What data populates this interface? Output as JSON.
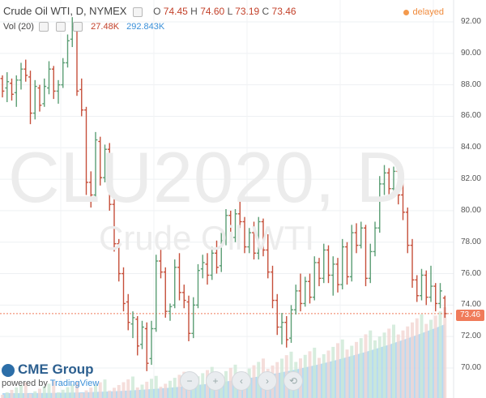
{
  "legend": {
    "title": "Crude Oil WTI, D, NYMEX",
    "open_label": "O",
    "open": "74.45",
    "high_label": "H",
    "high": "74.60",
    "low_label": "L",
    "low": "73.19",
    "close_label": "C",
    "close": "73.46"
  },
  "volume": {
    "label": "Vol (20)",
    "value": "27.48K",
    "ma": "292.843K"
  },
  "status": {
    "delayed": "delayed"
  },
  "watermark": {
    "symbol": "CLU2020, D",
    "name": "Crude Oil WTI"
  },
  "branding": {
    "logo": "CME Group",
    "powered_by": "powered by",
    "provider": "TradingView"
  },
  "price_axis": {
    "labels": [
      "92.00",
      "90.00",
      "88.00",
      "86.00",
      "84.00",
      "82.00",
      "80.00",
      "78.00",
      "76.00",
      "74.00",
      "72.00",
      "70.00"
    ],
    "current": "73.46"
  },
  "nav_buttons": [
    {
      "icon": "zoom-out-icon",
      "glyph": "−"
    },
    {
      "icon": "zoom-in-icon",
      "glyph": "+"
    },
    {
      "icon": "scroll-left-icon",
      "glyph": "‹"
    },
    {
      "icon": "scroll-right-icon",
      "glyph": "›"
    },
    {
      "icon": "reset-icon",
      "glyph": "⟲"
    }
  ],
  "colors": {
    "up": "#5b9e74",
    "down": "#c64f3a",
    "volume_up": "#cde8d6",
    "volume_down": "#f3d6d2",
    "ma_area": "#a8d4f2",
    "current_price": "#f07b5a"
  },
  "chart_data": {
    "type": "ohlc",
    "title": "Crude Oil WTI, D, NYMEX",
    "ylim": [
      69.5,
      92.5
    ],
    "series": [
      {
        "o": 88.4,
        "h": 88.6,
        "l": 87.2,
        "c": 87.6
      },
      {
        "o": 87.8,
        "h": 88.8,
        "l": 86.9,
        "c": 88.2
      },
      {
        "o": 88.1,
        "h": 88.4,
        "l": 87.0,
        "c": 87.4
      },
      {
        "o": 87.5,
        "h": 88.6,
        "l": 86.6,
        "c": 88.3
      },
      {
        "o": 88.3,
        "h": 89.4,
        "l": 87.7,
        "c": 89.0
      },
      {
        "o": 89.0,
        "h": 89.6,
        "l": 88.2,
        "c": 88.6
      },
      {
        "o": 88.5,
        "h": 88.9,
        "l": 85.5,
        "c": 86.2
      },
      {
        "o": 86.2,
        "h": 88.3,
        "l": 85.8,
        "c": 87.9
      },
      {
        "o": 87.8,
        "h": 88.0,
        "l": 86.3,
        "c": 86.7
      },
      {
        "o": 86.8,
        "h": 88.4,
        "l": 86.6,
        "c": 87.9
      },
      {
        "o": 87.8,
        "h": 89.5,
        "l": 87.4,
        "c": 89.0
      },
      {
        "o": 89.0,
        "h": 89.2,
        "l": 87.1,
        "c": 87.6
      },
      {
        "o": 87.6,
        "h": 88.3,
        "l": 86.8,
        "c": 88.0
      },
      {
        "o": 88.0,
        "h": 89.7,
        "l": 87.8,
        "c": 89.4
      },
      {
        "o": 89.4,
        "h": 91.2,
        "l": 89.1,
        "c": 90.8
      },
      {
        "o": 90.9,
        "h": 92.3,
        "l": 90.4,
        "c": 91.7
      },
      {
        "o": 91.7,
        "h": 91.9,
        "l": 87.3,
        "c": 87.6
      },
      {
        "o": 87.7,
        "h": 88.4,
        "l": 86.0,
        "c": 86.4
      },
      {
        "o": 86.4,
        "h": 86.6,
        "l": 81.0,
        "c": 81.8
      },
      {
        "o": 81.8,
        "h": 82.5,
        "l": 80.2,
        "c": 81.0
      },
      {
        "o": 81.0,
        "h": 85.0,
        "l": 80.6,
        "c": 84.5
      },
      {
        "o": 84.4,
        "h": 84.7,
        "l": 81.6,
        "c": 82.1
      },
      {
        "o": 82.1,
        "h": 84.2,
        "l": 81.8,
        "c": 83.9
      },
      {
        "o": 83.9,
        "h": 84.3,
        "l": 80.0,
        "c": 80.4
      },
      {
        "o": 80.4,
        "h": 80.8,
        "l": 77.4,
        "c": 77.9
      },
      {
        "o": 77.9,
        "h": 78.2,
        "l": 75.5,
        "c": 76.0
      },
      {
        "o": 76.0,
        "h": 76.4,
        "l": 73.6,
        "c": 74.1
      },
      {
        "o": 74.2,
        "h": 74.7,
        "l": 72.4,
        "c": 72.9
      },
      {
        "o": 72.8,
        "h": 73.6,
        "l": 71.9,
        "c": 73.2
      },
      {
        "o": 73.1,
        "h": 73.3,
        "l": 70.8,
        "c": 71.4
      },
      {
        "o": 71.5,
        "h": 73.0,
        "l": 71.2,
        "c": 72.6
      },
      {
        "o": 72.5,
        "h": 72.9,
        "l": 69.8,
        "c": 70.3
      },
      {
        "o": 70.6,
        "h": 73.0,
        "l": 70.2,
        "c": 72.5
      },
      {
        "o": 72.5,
        "h": 77.2,
        "l": 72.3,
        "c": 76.8
      },
      {
        "o": 76.8,
        "h": 77.6,
        "l": 75.7,
        "c": 76.1
      },
      {
        "o": 76.1,
        "h": 76.4,
        "l": 73.2,
        "c": 73.6
      },
      {
        "o": 73.6,
        "h": 74.1,
        "l": 73.0,
        "c": 73.9
      },
      {
        "o": 74.0,
        "h": 76.9,
        "l": 73.8,
        "c": 76.4
      },
      {
        "o": 76.4,
        "h": 77.3,
        "l": 74.3,
        "c": 74.8
      },
      {
        "o": 74.8,
        "h": 75.3,
        "l": 73.8,
        "c": 74.3
      },
      {
        "o": 74.2,
        "h": 74.6,
        "l": 71.7,
        "c": 72.2
      },
      {
        "o": 72.2,
        "h": 74.5,
        "l": 71.9,
        "c": 74.0
      },
      {
        "o": 74.0,
        "h": 76.6,
        "l": 73.8,
        "c": 76.2
      },
      {
        "o": 76.3,
        "h": 77.2,
        "l": 75.7,
        "c": 76.7
      },
      {
        "o": 76.6,
        "h": 77.3,
        "l": 75.3,
        "c": 75.9
      },
      {
        "o": 75.9,
        "h": 77.7,
        "l": 75.6,
        "c": 77.3
      },
      {
        "o": 77.3,
        "h": 78.1,
        "l": 76.0,
        "c": 76.4
      },
      {
        "o": 76.5,
        "h": 78.6,
        "l": 76.1,
        "c": 78.1
      },
      {
        "o": 78.1,
        "h": 80.1,
        "l": 77.8,
        "c": 79.7
      },
      {
        "o": 79.7,
        "h": 80.0,
        "l": 77.9,
        "c": 78.3
      },
      {
        "o": 78.3,
        "h": 80.1,
        "l": 78.0,
        "c": 79.8
      },
      {
        "o": 79.8,
        "h": 80.7,
        "l": 78.9,
        "c": 79.3
      },
      {
        "o": 79.3,
        "h": 79.6,
        "l": 77.3,
        "c": 77.7
      },
      {
        "o": 77.7,
        "h": 78.9,
        "l": 77.3,
        "c": 78.6
      },
      {
        "o": 78.6,
        "h": 79.3,
        "l": 76.9,
        "c": 77.3
      },
      {
        "o": 77.3,
        "h": 79.6,
        "l": 76.9,
        "c": 79.3
      },
      {
        "o": 79.3,
        "h": 79.5,
        "l": 77.1,
        "c": 77.5
      },
      {
        "o": 77.5,
        "h": 78.5,
        "l": 75.7,
        "c": 76.1
      },
      {
        "o": 76.1,
        "h": 76.5,
        "l": 73.8,
        "c": 74.3
      },
      {
        "o": 74.3,
        "h": 74.7,
        "l": 72.1,
        "c": 72.6
      },
      {
        "o": 72.6,
        "h": 73.5,
        "l": 71.5,
        "c": 72.9
      },
      {
        "o": 72.9,
        "h": 73.3,
        "l": 71.3,
        "c": 71.8
      },
      {
        "o": 71.9,
        "h": 74.0,
        "l": 71.6,
        "c": 73.7
      },
      {
        "o": 73.7,
        "h": 75.3,
        "l": 73.4,
        "c": 74.9
      },
      {
        "o": 74.9,
        "h": 76.0,
        "l": 73.6,
        "c": 74.1
      },
      {
        "o": 74.1,
        "h": 75.8,
        "l": 73.9,
        "c": 75.5
      },
      {
        "o": 75.5,
        "h": 76.0,
        "l": 74.1,
        "c": 74.5
      },
      {
        "o": 74.5,
        "h": 77.1,
        "l": 74.3,
        "c": 76.7
      },
      {
        "o": 76.7,
        "h": 77.0,
        "l": 75.2,
        "c": 75.7
      },
      {
        "o": 75.7,
        "h": 77.9,
        "l": 75.4,
        "c": 77.5
      },
      {
        "o": 77.5,
        "h": 77.8,
        "l": 75.4,
        "c": 75.9
      },
      {
        "o": 75.9,
        "h": 77.1,
        "l": 74.6,
        "c": 76.6
      },
      {
        "o": 76.6,
        "h": 77.0,
        "l": 74.8,
        "c": 75.3
      },
      {
        "o": 75.3,
        "h": 78.2,
        "l": 75.0,
        "c": 77.7
      },
      {
        "o": 77.7,
        "h": 78.0,
        "l": 75.3,
        "c": 75.8
      },
      {
        "o": 75.8,
        "h": 79.1,
        "l": 75.5,
        "c": 78.6
      },
      {
        "o": 78.6,
        "h": 79.2,
        "l": 77.3,
        "c": 77.8
      },
      {
        "o": 77.8,
        "h": 79.3,
        "l": 77.6,
        "c": 78.9
      },
      {
        "o": 78.9,
        "h": 79.1,
        "l": 75.2,
        "c": 75.7
      },
      {
        "o": 75.7,
        "h": 77.9,
        "l": 75.4,
        "c": 77.4
      },
      {
        "o": 77.4,
        "h": 79.3,
        "l": 77.1,
        "c": 78.9
      },
      {
        "o": 78.9,
        "h": 82.2,
        "l": 78.6,
        "c": 81.7
      },
      {
        "o": 81.7,
        "h": 82.9,
        "l": 81.0,
        "c": 82.4
      },
      {
        "o": 82.4,
        "h": 82.7,
        "l": 80.9,
        "c": 81.4
      },
      {
        "o": 81.4,
        "h": 82.8,
        "l": 81.1,
        "c": 82.5
      },
      {
        "o": 82.5,
        "h": 82.8,
        "l": 80.4,
        "c": 81.0
      },
      {
        "o": 81.0,
        "h": 81.8,
        "l": 79.4,
        "c": 79.9
      },
      {
        "o": 79.9,
        "h": 80.2,
        "l": 77.3,
        "c": 77.8
      },
      {
        "o": 77.8,
        "h": 78.2,
        "l": 75.1,
        "c": 75.6
      },
      {
        "o": 75.6,
        "h": 75.9,
        "l": 74.2,
        "c": 74.6
      },
      {
        "o": 74.6,
        "h": 76.3,
        "l": 74.3,
        "c": 75.9
      },
      {
        "o": 75.9,
        "h": 76.2,
        "l": 74.0,
        "c": 74.5
      },
      {
        "o": 74.5,
        "h": 76.5,
        "l": 74.2,
        "c": 75.2
      },
      {
        "o": 75.2,
        "h": 75.4,
        "l": 73.6,
        "c": 74.1
      },
      {
        "o": 74.1,
        "h": 75.4,
        "l": 73.8,
        "c": 74.9
      },
      {
        "o": 74.45,
        "h": 74.6,
        "l": 73.19,
        "c": 73.46
      }
    ]
  }
}
